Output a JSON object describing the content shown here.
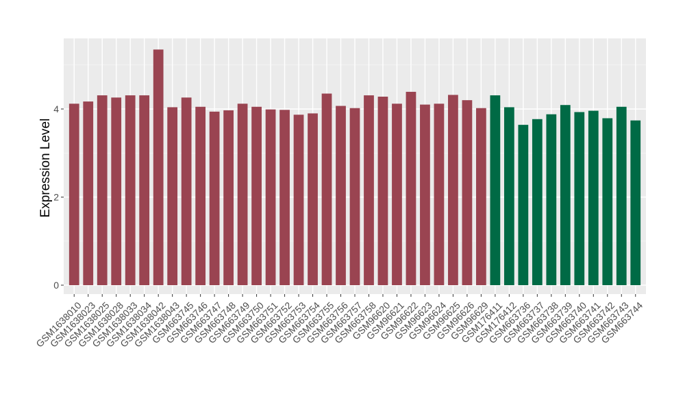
{
  "chart_data": {
    "type": "bar",
    "title": "",
    "xlabel": "",
    "ylabel": "Expression Level",
    "ylim": [
      0,
      5.5
    ],
    "yticks": [
      0,
      2,
      4
    ],
    "grid": true,
    "legend": "none",
    "colors": {
      "group1": "#9a4451",
      "group2": "#006a45",
      "panel": "#ebebeb",
      "grid": "#ffffff"
    },
    "categories": [
      "GSM1638010",
      "GSM1638023",
      "GSM1638025",
      "GSM1638028",
      "GSM1638033",
      "GSM1638034",
      "GSM1638042",
      "GSM1638043",
      "GSM663745",
      "GSM663746",
      "GSM663747",
      "GSM663748",
      "GSM663749",
      "GSM663750",
      "GSM663751",
      "GSM663752",
      "GSM663753",
      "GSM663754",
      "GSM663755",
      "GSM663756",
      "GSM663757",
      "GSM663758",
      "GSM96620",
      "GSM96621",
      "GSM96622",
      "GSM96623",
      "GSM96624",
      "GSM96625",
      "GSM96626",
      "GSM96629",
      "GSM176411",
      "GSM176412",
      "GSM663736",
      "GSM663737",
      "GSM663738",
      "GSM663739",
      "GSM663740",
      "GSM663741",
      "GSM663742",
      "GSM663743",
      "GSM663744"
    ],
    "values": [
      4.12,
      4.17,
      4.31,
      4.26,
      4.31,
      4.31,
      5.35,
      4.04,
      4.26,
      4.05,
      3.94,
      3.97,
      4.12,
      4.05,
      3.99,
      3.98,
      3.87,
      3.9,
      4.35,
      4.07,
      4.02,
      4.31,
      4.28,
      4.12,
      4.39,
      4.1,
      4.12,
      4.32,
      4.2,
      4.02,
      4.31,
      4.04,
      3.64,
      3.77,
      3.88,
      4.09,
      3.93,
      3.96,
      3.79,
      4.05,
      3.74
    ],
    "groups": [
      1,
      1,
      1,
      1,
      1,
      1,
      1,
      1,
      1,
      1,
      1,
      1,
      1,
      1,
      1,
      1,
      1,
      1,
      1,
      1,
      1,
      1,
      1,
      1,
      1,
      1,
      1,
      1,
      1,
      1,
      2,
      2,
      2,
      2,
      2,
      2,
      2,
      2,
      2,
      2,
      2
    ]
  }
}
